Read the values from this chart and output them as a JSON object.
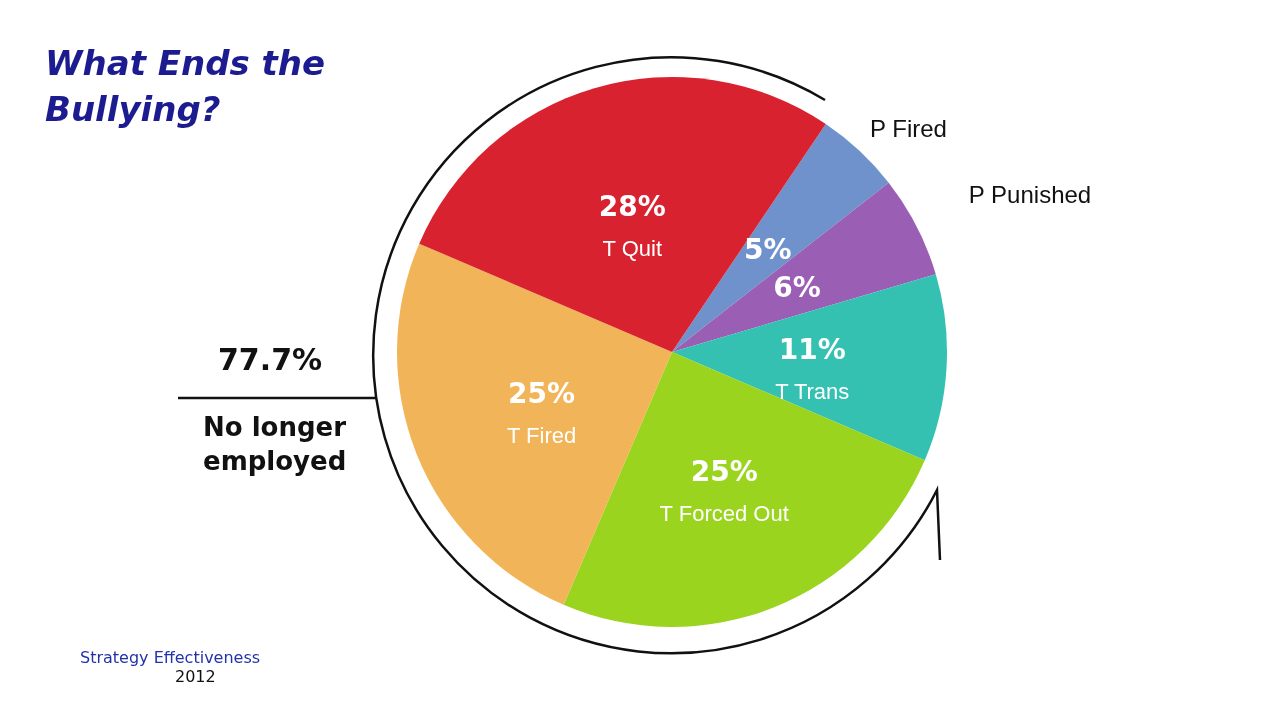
{
  "chart_data": {
    "type": "pie",
    "title": "What Ends the\nBullying?",
    "categories": [
      "P Fired",
      "P Punished",
      "T Trans",
      "T Forced Out",
      "T Fired",
      "T Quit"
    ],
    "values": [
      5,
      6,
      11,
      25,
      25,
      28
    ],
    "colors": [
      "#6f92cc",
      "#9a5eb4",
      "#35c1b2",
      "#9bd41f",
      "#f2b458",
      "#d9222f"
    ],
    "value_labels": [
      "5%",
      "6%",
      "11%",
      "25%",
      "25%",
      "28%"
    ],
    "annotations": [
      "77.7%",
      "No longer employed",
      "Strategy Effectiveness",
      "2012"
    ]
  }
}
